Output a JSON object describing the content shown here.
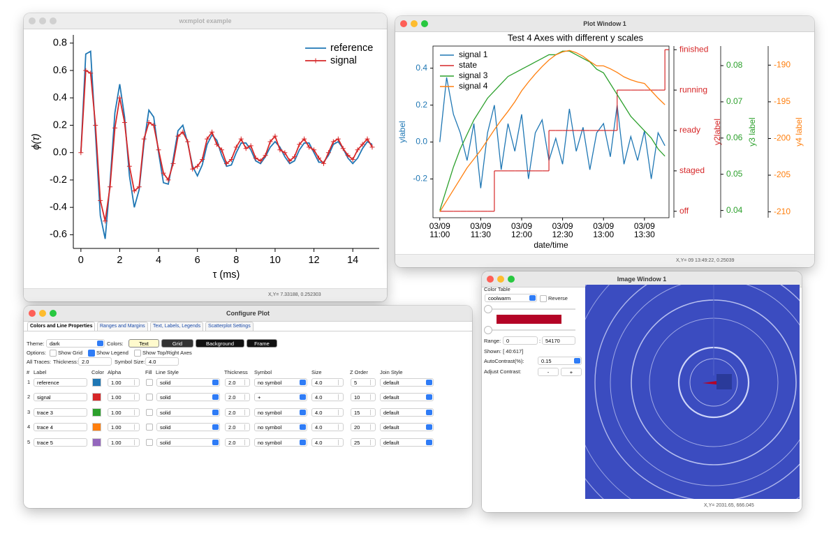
{
  "windows": {
    "plot": {
      "title": "wxmplot example",
      "status": "X,Y= 7.33188, 0.252303"
    },
    "plot_window": {
      "title": "Plot Window 1",
      "status": "X,Y= 09 13:49:22, 0.25039"
    }
  },
  "chart_data": [
    {
      "type": "line",
      "xlabel": "τ (ms)",
      "ylabel": "ϕ(τ)",
      "x": [
        0,
        0.25,
        0.5,
        0.75,
        1,
        1.25,
        1.5,
        1.75,
        2,
        2.25,
        2.5,
        2.75,
        3,
        3.25,
        3.5,
        3.75,
        4,
        4.25,
        4.5,
        4.75,
        5,
        5.25,
        5.5,
        5.75,
        6,
        6.25,
        6.5,
        6.75,
        7,
        7.25,
        7.5,
        7.75,
        8,
        8.25,
        8.5,
        8.75,
        9,
        9.25,
        9.5,
        9.75,
        10,
        10.25,
        10.5,
        10.75,
        11,
        11.25,
        11.5,
        11.75,
        12,
        12.25,
        12.5,
        12.75,
        13,
        13.25,
        13.5,
        13.75,
        14,
        14.25,
        14.5,
        14.75,
        15
      ],
      "series": [
        {
          "name": "reference",
          "color": "#1f77b4",
          "values": [
            0,
            0.72,
            0.74,
            0.14,
            -0.46,
            -0.63,
            -0.22,
            0.29,
            0.5,
            0.26,
            -0.17,
            -0.4,
            -0.27,
            0.07,
            0.31,
            0.26,
            0,
            -0.22,
            -0.23,
            -0.05,
            0.16,
            0.2,
            0.07,
            -0.1,
            -0.17,
            -0.09,
            0.06,
            0.13,
            0.09,
            -0.02,
            -0.1,
            -0.09,
            0,
            0.07,
            0.07,
            0.02,
            -0.06,
            -0.08,
            -0.03,
            0.04,
            0.08,
            0.04,
            -0.03,
            -0.08,
            -0.06,
            0.02,
            0.07,
            0.07,
            0,
            -0.07,
            -0.07,
            -0.02,
            0.06,
            0.08,
            0.03,
            -0.04,
            -0.08,
            -0.04,
            0.03,
            0.08,
            0.06
          ]
        },
        {
          "name": "signal",
          "color": "#d62728",
          "marker": "+",
          "values": [
            0,
            0.6,
            0.58,
            0.2,
            -0.35,
            -0.5,
            -0.25,
            0.18,
            0.4,
            0.22,
            -0.1,
            -0.28,
            -0.25,
            0.1,
            0.22,
            0.2,
            0.02,
            -0.15,
            -0.2,
            -0.08,
            0.12,
            0.15,
            0.08,
            -0.12,
            -0.1,
            -0.05,
            0.1,
            0.15,
            0.06,
            0.02,
            -0.08,
            -0.05,
            0.04,
            0.1,
            0.03,
            0.05,
            -0.04,
            -0.06,
            -0.02,
            0.08,
            0.12,
            0.02,
            0,
            -0.06,
            -0.03,
            0.06,
            0.1,
            0.04,
            0.02,
            -0.04,
            -0.08,
            0,
            0.08,
            0.1,
            0.03,
            -0.02,
            -0.05,
            0.02,
            0.06,
            0.1,
            0.04
          ]
        }
      ],
      "xlim": [
        -0.39,
        15.36
      ],
      "ylim": [
        -0.7,
        0.86
      ],
      "xticks": [
        0,
        2,
        4,
        6,
        8,
        10,
        12,
        14
      ],
      "yticks": [
        0.8,
        0.6,
        0.4,
        0.2,
        {
          "value": 0,
          "label": "0.0"
        },
        -0.2,
        -0.4,
        -0.6
      ],
      "legend": "upper right"
    },
    {
      "type": "line",
      "title": "Test 4 Axes with different y scales",
      "xlabel": "date/time",
      "ylabel": "ylabel",
      "y2label": "y2label",
      "y3label": "y3 label",
      "y4label": "y4 label",
      "x": [
        "03/09 11:00",
        "03/09 11:05",
        "03/09 11:10",
        "03/09 11:15",
        "03/09 11:20",
        "03/09 11:25",
        "03/09 11:30",
        "03/09 11:35",
        "03/09 11:40",
        "03/09 11:45",
        "03/09 11:50",
        "03/09 11:55",
        "03/09 12:00",
        "03/09 12:05",
        "03/09 12:10",
        "03/09 12:15",
        "03/09 12:20",
        "03/09 12:25",
        "03/09 12:30",
        "03/09 12:35",
        "03/09 12:40",
        "03/09 12:45",
        "03/09 12:50",
        "03/09 12:55",
        "03/09 13:00",
        "03/09 13:05",
        "03/09 13:10",
        "03/09 13:15",
        "03/09 13:20",
        "03/09 13:25",
        "03/09 13:30",
        "03/09 13:35",
        "03/09 13:40",
        "03/09 13:45"
      ],
      "xlim": [
        "03/09 10:55",
        "03/09 13:48"
      ],
      "xticks": [
        {
          "value": "03/09 11:00",
          "label": [
            "03/09",
            "11:00"
          ]
        },
        {
          "value": "03/09 11:30",
          "label": [
            "03/09",
            "11:30"
          ]
        },
        {
          "value": "03/09 12:00",
          "label": [
            "03/09",
            "12:00"
          ]
        },
        {
          "value": "03/09 12:30",
          "label": [
            "03/09",
            "12:30"
          ]
        },
        {
          "value": "03/09 13:00",
          "label": [
            "03/09",
            "13:00"
          ]
        },
        {
          "value": "03/09 13:30",
          "label": [
            "03/09",
            "13:30"
          ]
        }
      ],
      "ylim": [
        -0.41,
        0.52
      ],
      "yticks": [
        0.4,
        0.2,
        {
          "value": 0,
          "label": "0.0"
        },
        -0.2
      ],
      "y2lim": [
        -0.16,
        4.09
      ],
      "y2ticks": [
        {
          "value": 0,
          "label": "off"
        },
        {
          "value": 1,
          "label": "staged"
        },
        {
          "value": 2,
          "label": "ready"
        },
        {
          "value": 3,
          "label": "running"
        },
        {
          "value": 4,
          "label": "finished"
        }
      ],
      "y3lim": [
        0.038,
        0.0854
      ],
      "y3ticks": [
        0.04,
        0.05,
        0.06,
        0.07,
        0.08
      ],
      "y4lim": [
        -210.8,
        -187.4
      ],
      "y4ticks": [
        -210,
        -205,
        -200,
        -195,
        -190
      ],
      "legend": "upper left",
      "series": [
        {
          "name": "signal 1",
          "color": "#1f77b4",
          "values": [
            0,
            0.35,
            0.15,
            0.05,
            -0.1,
            0.1,
            -0.25,
            0.05,
            0.2,
            -0.15,
            0.1,
            -0.05,
            0.15,
            -0.2,
            0.05,
            0.12,
            -0.1,
            0.02,
            -0.12,
            0.18,
            -0.05,
            0.08,
            -0.15,
            0.05,
            0.1,
            -0.08,
            0.2,
            -0.12,
            0.03,
            -0.1,
            0.06,
            -0.2,
            0.05,
            -0.02
          ]
        },
        {
          "name": "state",
          "color": "#d62728",
          "axis": "y2",
          "drawstyle": "steps-post",
          "values": [
            0,
            0,
            0,
            0,
            0,
            0,
            0,
            0,
            1,
            1,
            1,
            1,
            1,
            1,
            1,
            1,
            2,
            2,
            2,
            2,
            2,
            2,
            2,
            2,
            2,
            2,
            3,
            3,
            3,
            3,
            3,
            3,
            3,
            4
          ]
        },
        {
          "name": "signal 3",
          "color": "#2ca02c",
          "axis": "y3",
          "values": [
            0.04,
            0.046,
            0.052,
            0.057,
            0.061,
            0.065,
            0.068,
            0.071,
            0.073,
            0.075,
            0.077,
            0.078,
            0.079,
            0.08,
            0.081,
            0.082,
            0.083,
            0.083,
            0.084,
            0.084,
            0.083,
            0.082,
            0.081,
            0.079,
            0.078,
            0.075,
            0.072,
            0.069,
            0.066,
            0.064,
            0.062,
            0.06,
            0.057,
            0.055
          ]
        },
        {
          "name": "signal 4",
          "color": "#ff7f0e",
          "axis": "y4",
          "values": [
            -210,
            -208.5,
            -207,
            -205.5,
            -204,
            -202.8,
            -201.6,
            -200.2,
            -198.8,
            -197.5,
            -196.3,
            -195,
            -193.5,
            -192.3,
            -191.2,
            -190.2,
            -189.3,
            -188.6,
            -188.2,
            -188,
            -188.3,
            -188.8,
            -189.5,
            -190.1,
            -190.1,
            -190.5,
            -191,
            -191.6,
            -192,
            -192.3,
            -192.5,
            -193.5,
            -194.5,
            -195.4
          ]
        }
      ]
    }
  ],
  "configure": {
    "title": "Configure Plot",
    "tabs": [
      "Colors and Line Properties",
      "Ranges and Margins",
      "Text, Labels, Legends",
      "Scatterplot Settings"
    ],
    "theme_label": "Theme:",
    "theme": "dark",
    "colors_label": "Colors:",
    "color_buttons": [
      "Text",
      "Grid",
      "Background",
      "Frame"
    ],
    "options_label": "Options:",
    "options": [
      {
        "label": "Show Grid",
        "checked": false
      },
      {
        "label": "Show Legend",
        "checked": true
      },
      {
        "label": "Show Top/Right Axes",
        "checked": false
      }
    ],
    "all_traces_label": "All Traces:",
    "thickness_label": "Thickness:",
    "thickness": "2.0",
    "symbol_size_label": "Symbol Size:",
    "symbol_size": "4.0",
    "columns": [
      "#",
      "Label",
      "Color",
      "Alpha",
      "Fill",
      "Line Style",
      "Thickness",
      "Symbol",
      "Size",
      "Z Order",
      "Join Style"
    ],
    "rows": [
      {
        "index": "1",
        "label": "reference",
        "color": "#1f77b4",
        "alpha": "1.00",
        "line_style": "solid",
        "thickness": "2.0",
        "symbol": "no symbol",
        "size": "4.0",
        "z_order": "5",
        "join_style": "default"
      },
      {
        "index": "2",
        "label": "signal",
        "color": "#d62728",
        "alpha": "1.00",
        "line_style": "solid",
        "thickness": "2.0",
        "symbol": "+",
        "size": "4.0",
        "z_order": "10",
        "join_style": "default"
      },
      {
        "index": "3",
        "label": "trace 3",
        "color": "#2ca02c",
        "alpha": "1.00",
        "line_style": "solid",
        "thickness": "2.0",
        "symbol": "no symbol",
        "size": "4.0",
        "z_order": "15",
        "join_style": "default"
      },
      {
        "index": "4",
        "label": "trace 4",
        "color": "#ff7f0e",
        "alpha": "1.00",
        "line_style": "solid",
        "thickness": "2.0",
        "symbol": "no symbol",
        "size": "4.0",
        "z_order": "20",
        "join_style": "default"
      },
      {
        "index": "5",
        "label": "trace 5",
        "color": "#9467bd",
        "alpha": "1.00",
        "line_style": "solid",
        "thickness": "2.0",
        "symbol": "no symbol",
        "size": "4.0",
        "z_order": "25",
        "join_style": "default"
      }
    ]
  },
  "image_window": {
    "title": "Image Window 1",
    "color_table_label": "Color Table",
    "colormap": "coolwarm",
    "reverse_label": "Reverse",
    "range_label": "Range:",
    "range_min": "0",
    "range_sep": ":",
    "range_max": "54170",
    "shown": "Shown: [   40:617]",
    "auto_contrast_label": "AutoContrast(%):",
    "auto_contrast": "0.15",
    "adjust_contrast_label": "Adjust Contrast:",
    "buttons": [
      "-",
      "+"
    ],
    "status": "X,Y= 2031.65, 666.045"
  }
}
